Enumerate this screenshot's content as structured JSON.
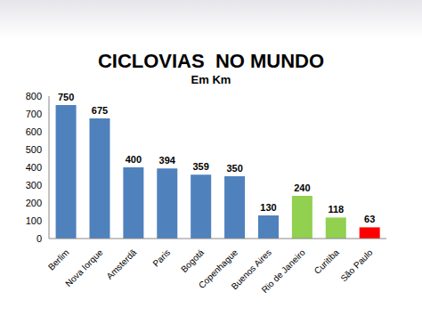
{
  "chart_data": {
    "type": "bar",
    "title": "CICLOVIAS  NO MUNDO",
    "subtitle": "Em Km",
    "categories": [
      "Berlim",
      "Nova Iorque",
      "Amsterdã",
      "Paris",
      "Bogotá",
      "Copenhague",
      "Buenos Aires",
      "Rio de Janeiro",
      "Curitiba",
      "São Paulo"
    ],
    "values": [
      750,
      675,
      400,
      394,
      359,
      350,
      130,
      240,
      118,
      63
    ],
    "colors": [
      "#4f81bd",
      "#4f81bd",
      "#4f81bd",
      "#4f81bd",
      "#4f81bd",
      "#4f81bd",
      "#4f81bd",
      "#92d050",
      "#92d050",
      "#ff0000"
    ],
    "ylim": [
      0,
      800
    ],
    "yticks": [
      0,
      100,
      200,
      300,
      400,
      500,
      600,
      700,
      800
    ],
    "grid": false,
    "data_labels": true
  }
}
